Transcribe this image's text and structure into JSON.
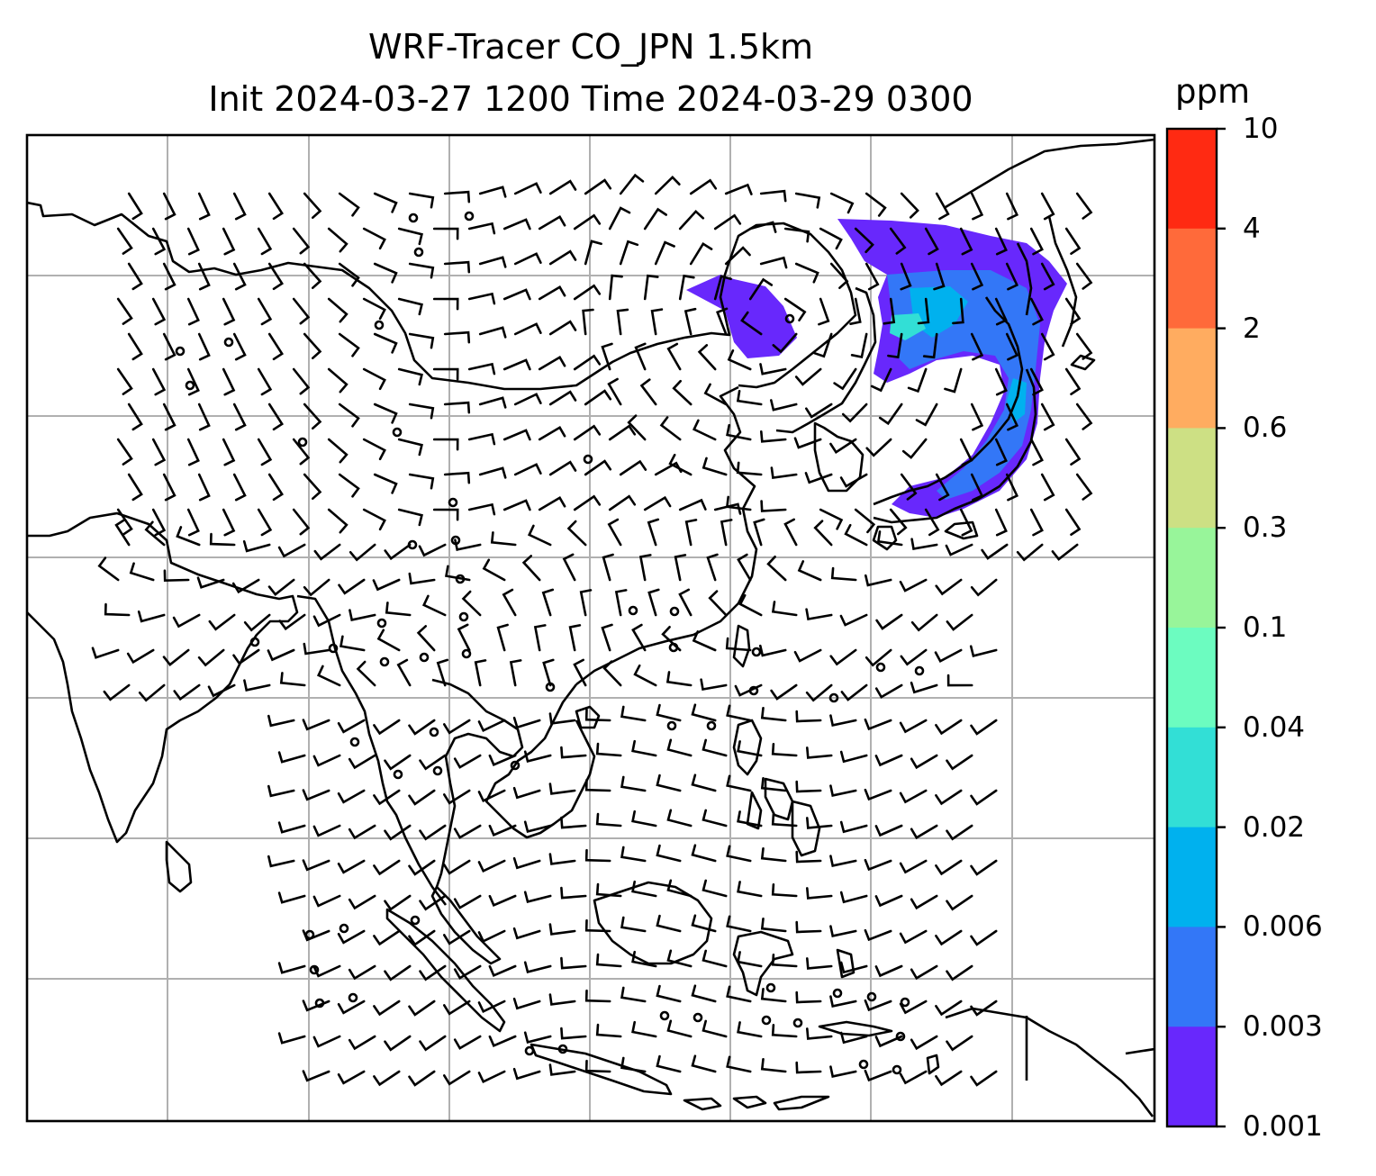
{
  "title": {
    "line1": "WRF-Tracer CO_JPN 1.5km",
    "line2": "Init 2024-03-27 1200 Time 2024-03-29 0300"
  },
  "colorbar": {
    "unit": "ppm",
    "ticks": [
      "10",
      "4",
      "2",
      "0.6",
      "0.3",
      "0.1",
      "0.04",
      "0.02",
      "0.006",
      "0.003",
      "0.001"
    ],
    "colors": [
      "#ff2a12",
      "#ff6a3a",
      "#ffac60",
      "#cde084",
      "#98f59a",
      "#6cfcc0",
      "#32dfd6",
      "#00b1ee",
      "#3377f7",
      "#6828fc"
    ]
  },
  "map": {
    "type": "map",
    "grid": true,
    "plume_colors": [
      "#6828fc",
      "#3377f7",
      "#00b1ee"
    ]
  }
}
